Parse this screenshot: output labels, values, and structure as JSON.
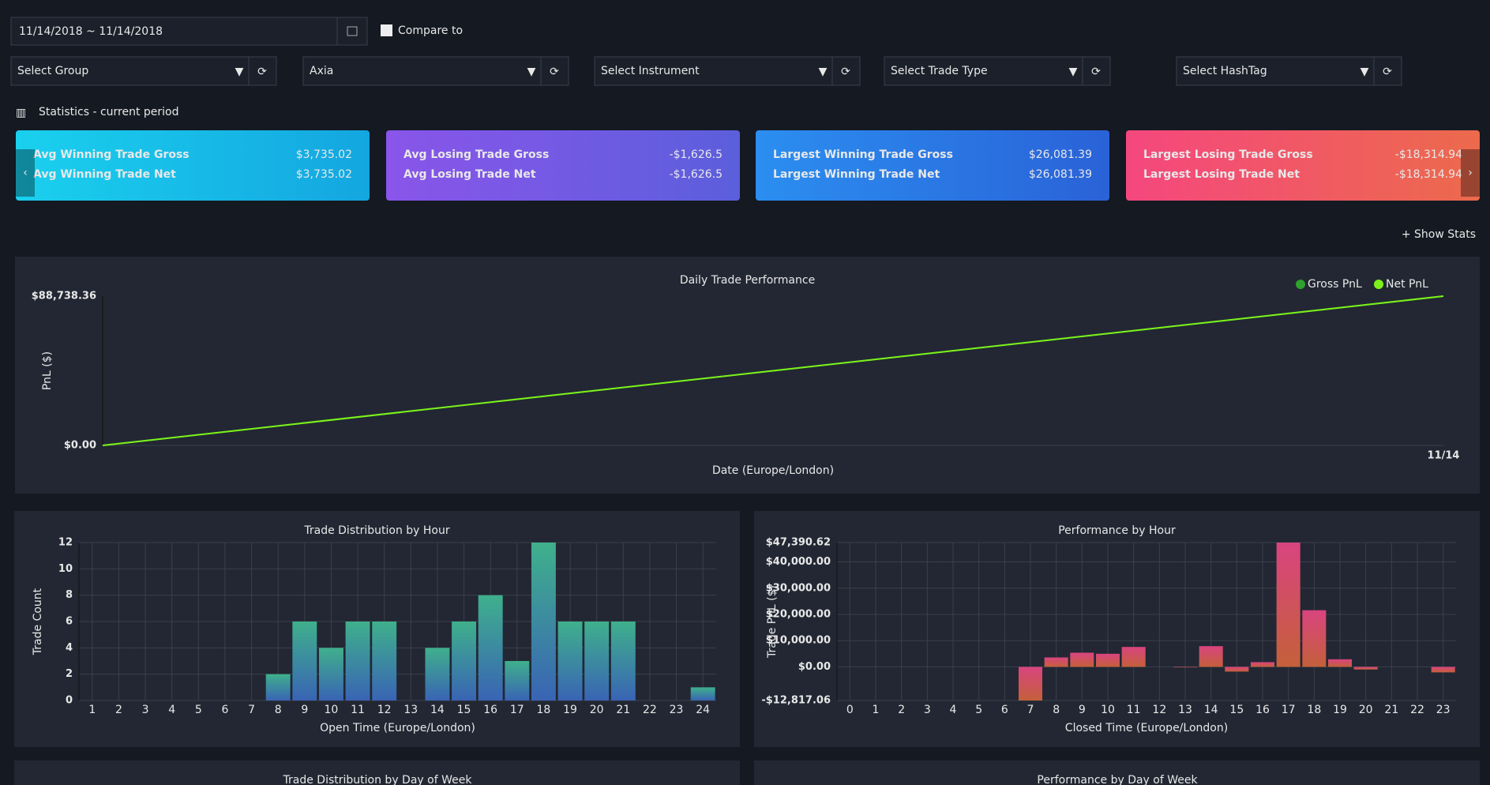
{
  "filters": {
    "date_range": "11/14/2018 ~ 11/14/2018",
    "compare_label": "Compare to",
    "selects": [
      "Select Group",
      "Axia",
      "Select Instrument",
      "Select Trade Type",
      "Select HashTag"
    ]
  },
  "stats_title": "Statistics - current period",
  "cards": [
    {
      "rows": [
        {
          "label": "Avg Winning Trade Gross",
          "value": "$3,735.02"
        },
        {
          "label": "Avg Winning Trade Net",
          "value": "$3,735.02"
        }
      ],
      "colors": [
        "#1ad0ee",
        "#14a6e0"
      ]
    },
    {
      "rows": [
        {
          "label": "Avg Losing Trade Gross",
          "value": "-$1,626.5"
        },
        {
          "label": "Avg Losing Trade Net",
          "value": "-$1,626.5"
        }
      ],
      "colors": [
        "#8a55ea",
        "#5b5fdc"
      ]
    },
    {
      "rows": [
        {
          "label": "Largest Winning Trade Gross",
          "value": "$26,081.39"
        },
        {
          "label": "Largest Winning Trade Net",
          "value": "$26,081.39"
        }
      ],
      "colors": [
        "#2b8ef0",
        "#2a62d8"
      ]
    },
    {
      "rows": [
        {
          "label": "Largest Losing Trade Gross",
          "value": "-$18,314.94"
        },
        {
          "label": "Largest Losing Trade Net",
          "value": "-$18,314.94"
        }
      ],
      "colors": [
        "#f5477e",
        "#ec6a4c"
      ]
    }
  ],
  "show_stats": "+ Show Stats",
  "chart_data": [
    {
      "type": "line",
      "title": "Daily Trade Performance",
      "ylabel": "PnL ($)",
      "xlabel": "Date (Europe/London)",
      "categories": [
        null,
        "11/14"
      ],
      "series": [
        {
          "name": "Gross PnL",
          "color": "#2ea12e",
          "values": [
            0,
            88738.36
          ]
        },
        {
          "name": "Net PnL",
          "color": "#7cf01a",
          "values": [
            0,
            88738.36
          ]
        }
      ],
      "ylim": [
        0,
        88738.36
      ],
      "yticks": [
        {
          "value": 0,
          "label": "$0.00"
        },
        {
          "value": 88738.36,
          "label": "$88,738.36"
        }
      ]
    },
    {
      "type": "bar",
      "title": "Trade Distribution by Hour",
      "ylabel": "Trade Count",
      "xlabel": "Open Time (Europe/London)",
      "categories": [
        1,
        2,
        3,
        4,
        5,
        6,
        7,
        8,
        9,
        10,
        11,
        12,
        13,
        14,
        15,
        16,
        17,
        18,
        19,
        20,
        21,
        22,
        23,
        24
      ],
      "values": [
        0,
        0,
        0,
        0,
        0,
        0,
        0,
        2,
        6,
        4,
        6,
        6,
        0,
        4,
        6,
        8,
        3,
        12,
        6,
        6,
        6,
        0,
        0,
        1
      ],
      "gradient": [
        "#3fb08c",
        "#3964b4"
      ],
      "ylim": [
        0,
        12
      ],
      "yticks": [
        0,
        2,
        4,
        6,
        8,
        10,
        12
      ],
      "grid": true
    },
    {
      "type": "bar",
      "title": "Performance by Hour",
      "ylabel": "Trade PnL ($)",
      "xlabel": "Closed Time (Europe/London)",
      "categories": [
        0,
        1,
        2,
        3,
        4,
        5,
        6,
        7,
        8,
        9,
        10,
        11,
        12,
        13,
        14,
        15,
        16,
        17,
        18,
        19,
        20,
        21,
        22,
        23
      ],
      "values": [
        0,
        0,
        0,
        0,
        0,
        0,
        0,
        -12817.06,
        3600,
        5400,
        5000,
        7600,
        0,
        -200,
        7900,
        -1800,
        1800,
        47390.62,
        21600,
        2900,
        -1000,
        0,
        0,
        -2100
      ],
      "gradient": [
        "#d9447f",
        "#c4603a"
      ],
      "ylim": [
        -12817.06,
        47390.62
      ],
      "yticks": [
        {
          "value": -12817.06,
          "label": "-$12,817.06"
        },
        {
          "value": 0,
          "label": "$0.00"
        },
        {
          "value": 10000,
          "label": "$10,000.00"
        },
        {
          "value": 20000,
          "label": "$20,000.00"
        },
        {
          "value": 30000,
          "label": "$30,000.00"
        },
        {
          "value": 40000,
          "label": "$40,000.00"
        },
        {
          "value": 47390.62,
          "label": "$47,390.62"
        }
      ],
      "grid": true
    }
  ],
  "lower_panels": [
    {
      "title": "Trade Distribution by Day of Week"
    },
    {
      "title": "Performance by Day of Week"
    }
  ]
}
